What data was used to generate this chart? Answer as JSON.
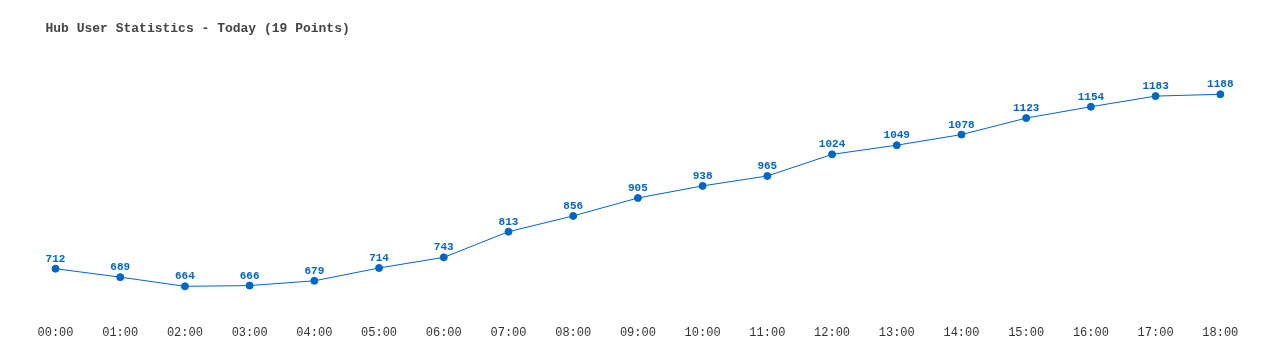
{
  "chart_data": {
    "type": "line",
    "title": "Hub User Statistics - Today (19 Points)",
    "categories": [
      "00:00",
      "01:00",
      "02:00",
      "03:00",
      "04:00",
      "05:00",
      "06:00",
      "07:00",
      "08:00",
      "09:00",
      "10:00",
      "11:00",
      "12:00",
      "13:00",
      "14:00",
      "15:00",
      "16:00",
      "17:00",
      "18:00"
    ],
    "series": [
      {
        "color": "#0066cc",
        "values": [
          712,
          689,
          664,
          666,
          679,
          714,
          743,
          813,
          856,
          905,
          938,
          965,
          1024,
          1049,
          1078,
          1123,
          1154,
          1183,
          1188
        ]
      }
    ],
    "data_labels": true,
    "marker": "circle",
    "grid": false
  }
}
